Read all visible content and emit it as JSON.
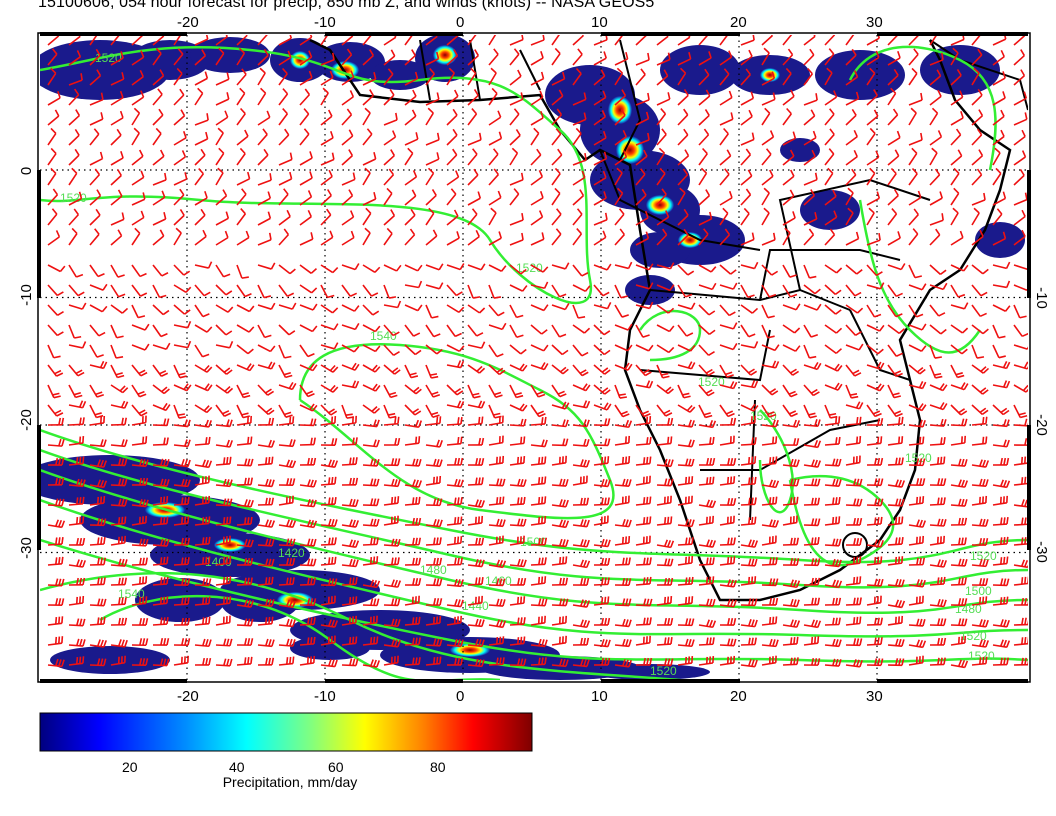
{
  "title": "15100606, 054 hour forecast for precip, 850 mb Z, and winds (knots) -- NASA GEOS5",
  "map": {
    "lon_ticks_top": [
      "-20",
      "-10",
      "0",
      "10",
      "20",
      "30"
    ],
    "lon_ticks_bottom": [
      "-20",
      "-10",
      "0",
      "10",
      "20",
      "30"
    ],
    "lat_ticks_left": [
      "0",
      "-10",
      "-20",
      "-30"
    ],
    "lat_ticks_right": [
      "-10",
      "-20",
      "-30"
    ],
    "contour_labels": [
      "1520",
      "1520",
      "1520",
      "1540",
      "1520",
      "1520",
      "1520",
      "1500",
      "1480",
      "1460",
      "1440",
      "1420",
      "1400",
      "1540",
      "1520",
      "1500",
      "1480",
      "1520",
      "1520",
      "1520"
    ],
    "colors": {
      "contour": "#33ee33",
      "wind_barb": "#ee1111",
      "coastline": "#000000",
      "precip_low": "#1a1a8c",
      "precip_high": "#7a0000"
    }
  },
  "colorbar": {
    "tick_labels": [
      "20",
      "40",
      "60",
      "80"
    ],
    "label": "Precipitation, mm/day",
    "colormap": [
      "#00007f",
      "#0000ff",
      "#0080ff",
      "#00ffff",
      "#80ff80",
      "#ffff00",
      "#ff8000",
      "#ff0000",
      "#7f0000"
    ]
  }
}
